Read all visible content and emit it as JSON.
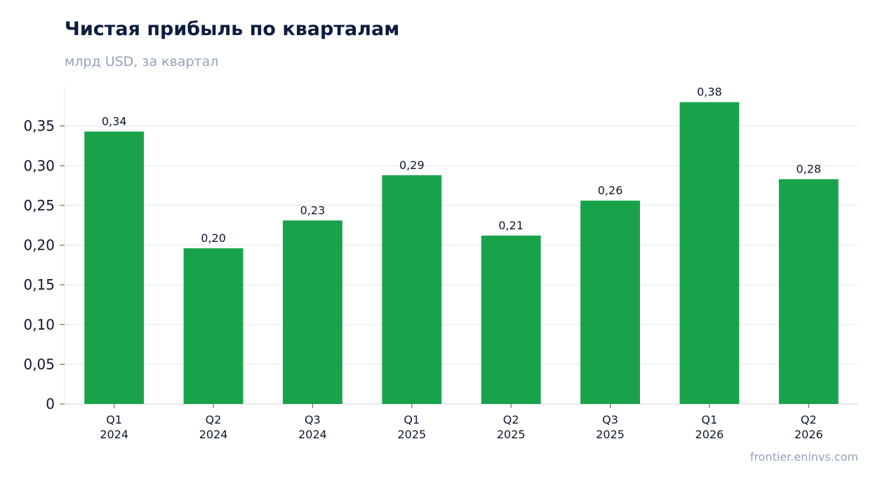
{
  "chart_data": {
    "type": "bar",
    "title": "Чистая прибыль по кварталам",
    "subtitle": "млрд USD, за квартал",
    "source": "frontier.eninvs.com",
    "categories": [
      [
        "Q1",
        "2024"
      ],
      [
        "Q2",
        "2024"
      ],
      [
        "Q3",
        "2024"
      ],
      [
        "Q1",
        "2025"
      ],
      [
        "Q2",
        "2025"
      ],
      [
        "Q3",
        "2025"
      ],
      [
        "Q1",
        "2026"
      ],
      [
        "Q2",
        "2026"
      ]
    ],
    "values": [
      0.343,
      0.196,
      0.231,
      0.288,
      0.212,
      0.256,
      0.38,
      0.283
    ],
    "data_labels": [
      "0,34",
      "0,20",
      "0,23",
      "0,29",
      "0,21",
      "0,26",
      "0,38",
      "0,28"
    ],
    "y_ticks": [
      0,
      0.05,
      0.1,
      0.15,
      0.2,
      0.25,
      0.3,
      0.35
    ],
    "y_tick_labels": [
      "0",
      "0,05",
      "0,10",
      "0,15",
      "0,20",
      "0,25",
      "0,30",
      "0,35"
    ],
    "ylim": [
      0,
      0.4
    ],
    "xlabel": "",
    "ylabel": "",
    "grid": true,
    "legend": "none",
    "bar_color": "#18a34a",
    "grid_color": "#e2e8f0"
  }
}
